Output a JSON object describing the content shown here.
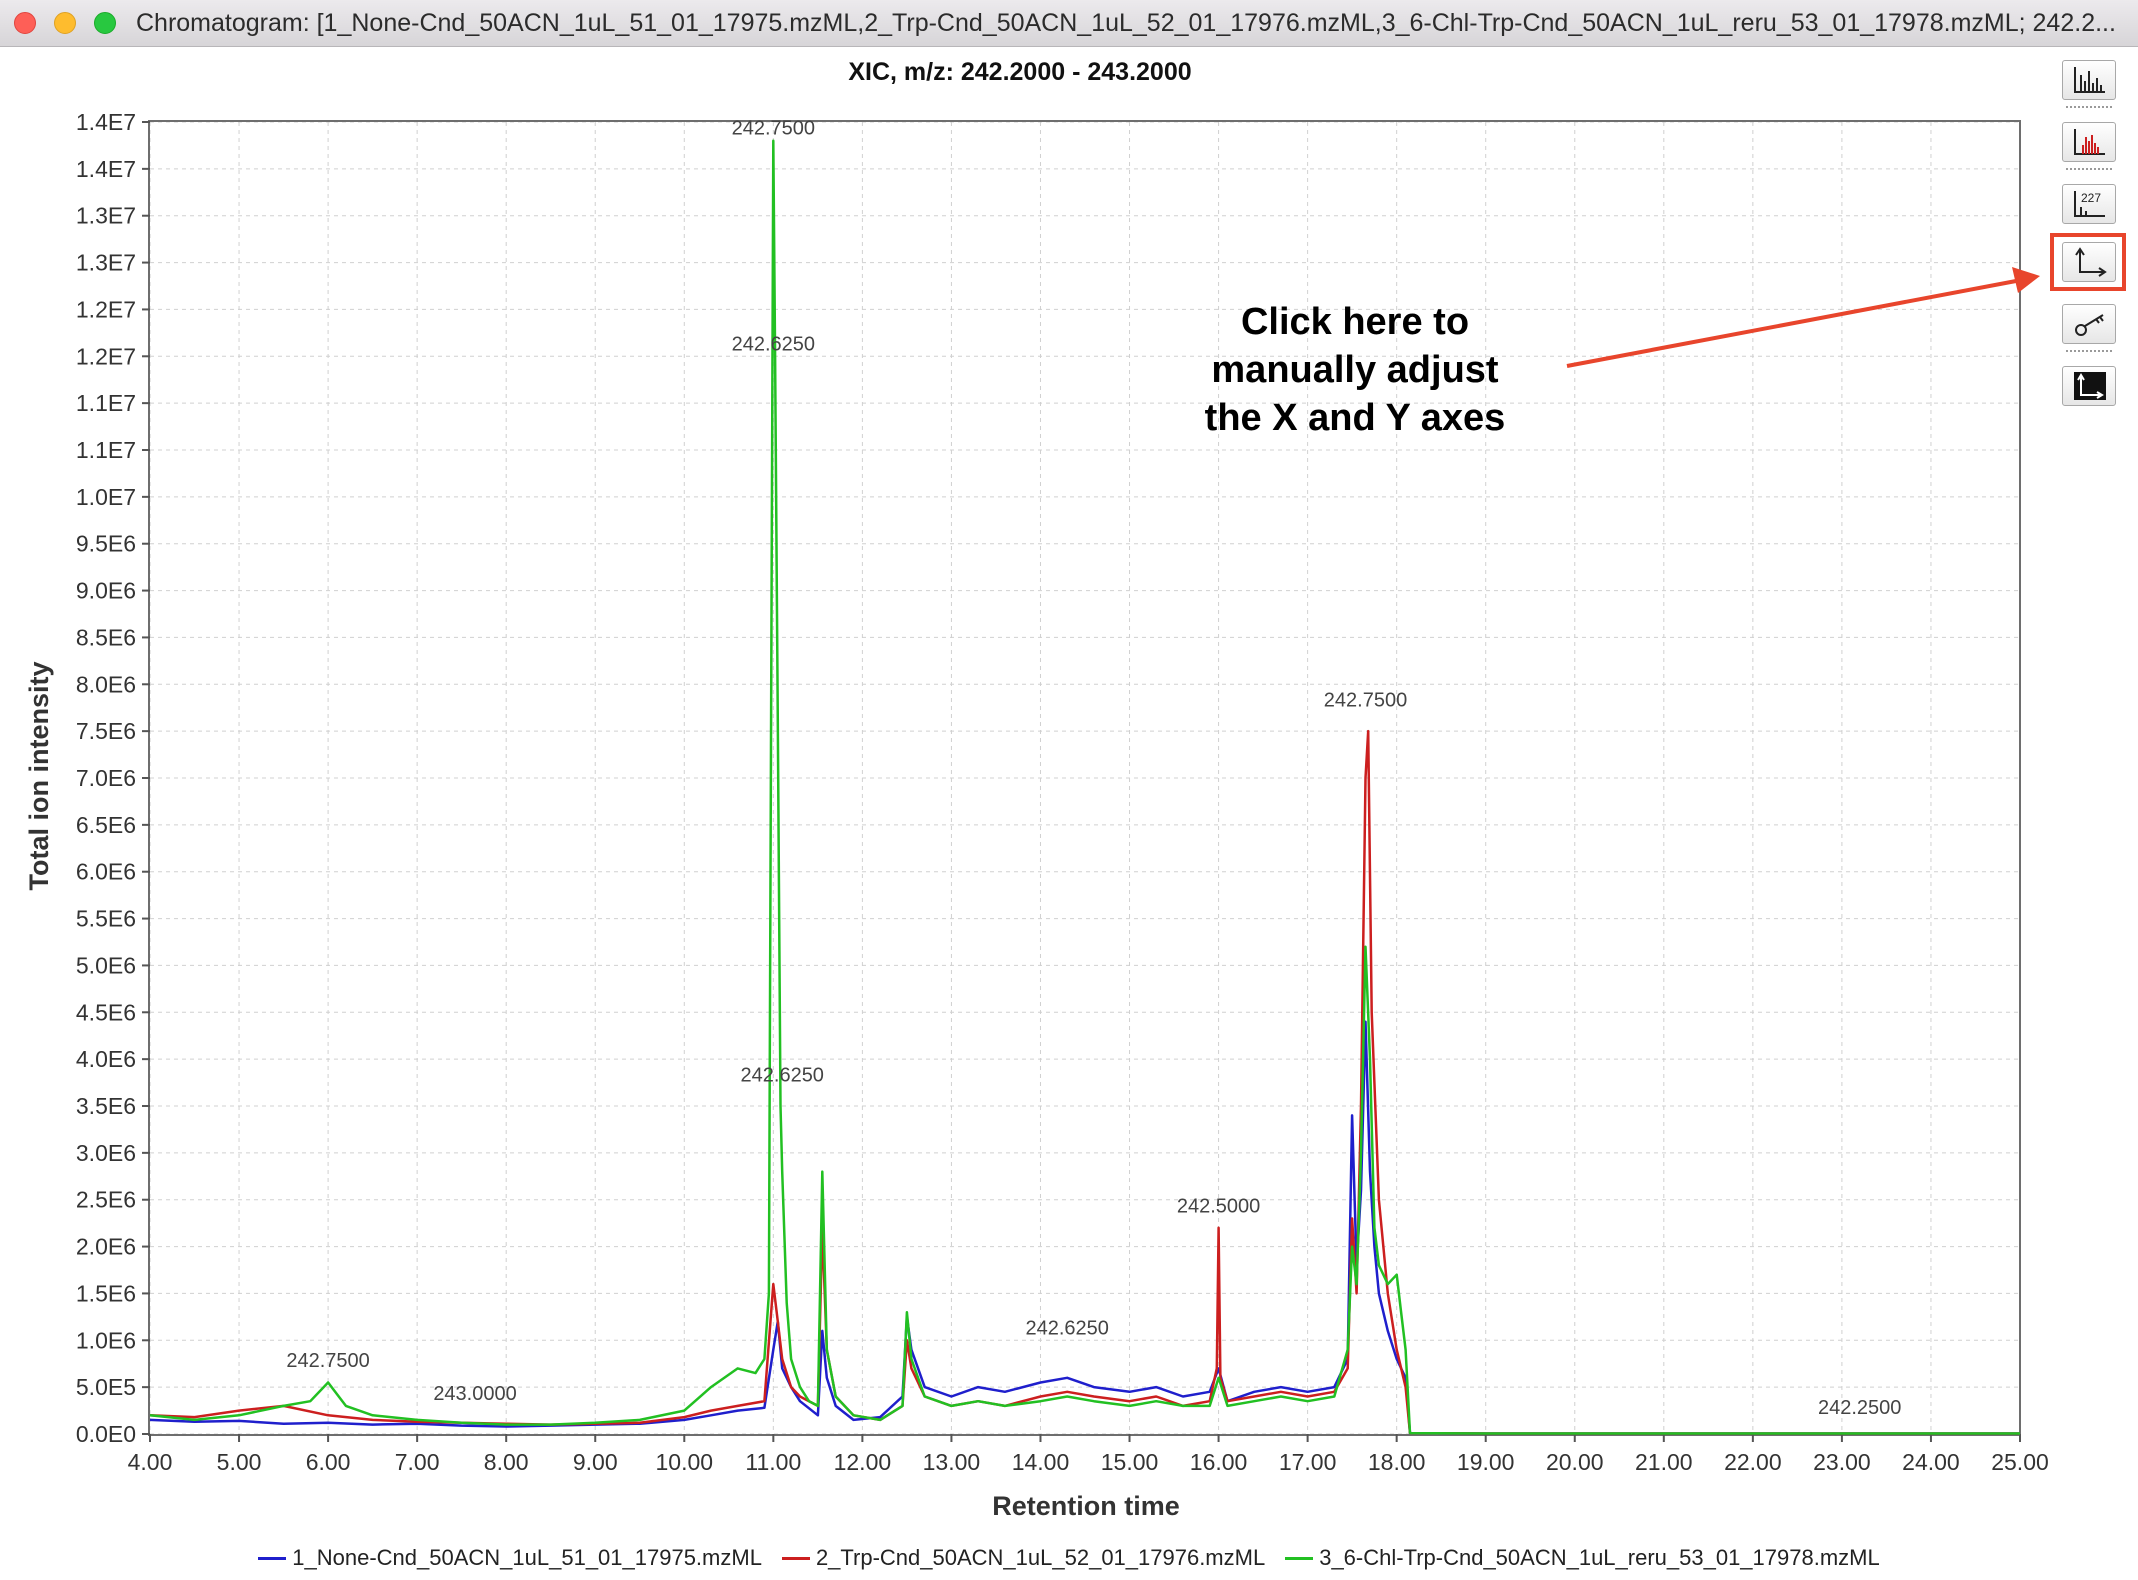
{
  "window": {
    "title": "Chromatogram: [1_None-Cnd_50ACN_1uL_51_01_17975.mzML,2_Trp-Cnd_50ACN_1uL_52_01_17976.mzML,3_6-Chl-Trp-Cnd_50ACN_1uL_reru_53_01_17978.mzML; 242.2..."
  },
  "toolbar": {
    "buttons": [
      {
        "name": "spectra-display-icon",
        "highlighted": false
      },
      {
        "name": "peak-display-icon",
        "highlighted": false
      },
      {
        "name": "annotation-toggle-icon",
        "label": "227",
        "highlighted": false
      },
      {
        "name": "axes-settings-icon",
        "highlighted": true
      },
      {
        "name": "key-icon",
        "highlighted": false
      },
      {
        "name": "axes-dark-icon",
        "highlighted": false
      }
    ]
  },
  "annotation": {
    "lines": [
      "Click here to",
      "manually adjust",
      "the X and Y axes"
    ],
    "color": "#e8452c"
  },
  "chart_data": {
    "type": "line",
    "title": "XIC, m/z: 242.2000 - 243.2000",
    "xlabel": "Retention time",
    "ylabel": "Total ion intensity",
    "xlim": [
      4.0,
      25.0
    ],
    "ylim": [
      0,
      14000000
    ],
    "x_ticks": [
      "4.00",
      "5.00",
      "6.00",
      "7.00",
      "8.00",
      "9.00",
      "10.00",
      "11.00",
      "12.00",
      "13.00",
      "14.00",
      "15.00",
      "16.00",
      "17.00",
      "18.00",
      "19.00",
      "20.00",
      "21.00",
      "22.00",
      "23.00",
      "24.00",
      "25.00"
    ],
    "y_ticks": [
      "0.0E0",
      "5.0E5",
      "1.0E6",
      "1.5E6",
      "2.0E6",
      "2.5E6",
      "3.0E6",
      "3.5E6",
      "4.0E6",
      "4.5E6",
      "5.0E6",
      "5.5E6",
      "6.0E6",
      "6.5E6",
      "7.0E6",
      "7.5E6",
      "8.0E6",
      "8.5E6",
      "9.0E6",
      "9.5E6",
      "1.0E7",
      "1.1E7",
      "1.1E7",
      "1.2E7",
      "1.2E7",
      "1.3E7",
      "1.3E7",
      "1.4E7",
      "1.4E7"
    ],
    "grid": true,
    "legend_position": "bottom",
    "series": [
      {
        "name": "1_None-Cnd_50ACN_1uL_51_01_17975.mzML",
        "color": "#1f1fcc",
        "x": [
          4.0,
          4.5,
          5.0,
          5.5,
          6.0,
          6.5,
          7.0,
          7.5,
          8.0,
          8.5,
          9.0,
          9.5,
          10.0,
          10.3,
          10.6,
          10.9,
          11.0,
          11.05,
          11.1,
          11.2,
          11.3,
          11.5,
          11.55,
          11.6,
          11.7,
          11.9,
          12.2,
          12.45,
          12.5,
          12.55,
          12.7,
          13.0,
          13.3,
          13.6,
          14.0,
          14.3,
          14.6,
          15.0,
          15.3,
          15.6,
          15.9,
          16.0,
          16.1,
          16.4,
          16.7,
          17.0,
          17.3,
          17.45,
          17.5,
          17.55,
          17.6,
          17.65,
          17.7,
          17.75,
          17.8,
          17.9,
          18.0,
          18.1,
          18.15,
          19.0,
          20.0,
          21.0,
          22.0,
          23.0,
          24.0,
          25.0
        ],
        "y": [
          150000,
          130000,
          140000,
          110000,
          120000,
          100000,
          110000,
          90000,
          80000,
          90000,
          100000,
          110000,
          150000,
          200000,
          250000,
          280000,
          900000,
          1200000,
          700000,
          500000,
          350000,
          200000,
          1100000,
          600000,
          300000,
          150000,
          180000,
          400000,
          1250000,
          900000,
          500000,
          400000,
          500000,
          450000,
          550000,
          600000,
          500000,
          450000,
          500000,
          400000,
          450000,
          700000,
          350000,
          450000,
          500000,
          450000,
          500000,
          800000,
          3400000,
          1800000,
          2600000,
          4400000,
          2800000,
          2000000,
          1500000,
          1100000,
          800000,
          600000,
          10000,
          5000,
          5000,
          5000,
          5000,
          5000,
          5000,
          5000
        ]
      },
      {
        "name": "2_Trp-Cnd_50ACN_1uL_52_01_17976.mzML",
        "color": "#cc1f1f",
        "x": [
          4.0,
          4.5,
          5.0,
          5.5,
          6.0,
          6.5,
          7.0,
          7.5,
          8.0,
          8.5,
          9.0,
          9.5,
          10.0,
          10.3,
          10.6,
          10.9,
          11.0,
          11.05,
          11.1,
          11.2,
          11.3,
          11.5,
          11.55,
          11.6,
          11.7,
          11.9,
          12.2,
          12.45,
          12.5,
          12.55,
          12.7,
          13.0,
          13.3,
          13.6,
          14.0,
          14.3,
          14.6,
          15.0,
          15.3,
          15.6,
          15.9,
          15.98,
          16.0,
          16.02,
          16.1,
          16.4,
          16.7,
          17.0,
          17.3,
          17.45,
          17.5,
          17.55,
          17.6,
          17.65,
          17.68,
          17.72,
          17.8,
          17.9,
          18.0,
          18.1,
          18.15,
          19.0,
          20.0,
          21.0,
          22.0,
          23.0,
          24.0,
          25.0
        ],
        "y": [
          200000,
          180000,
          250000,
          300000,
          200000,
          150000,
          130000,
          120000,
          110000,
          100000,
          110000,
          120000,
          180000,
          250000,
          300000,
          350000,
          1600000,
          1200000,
          800000,
          500000,
          400000,
          300000,
          2200000,
          900000,
          400000,
          200000,
          150000,
          300000,
          1000000,
          700000,
          400000,
          300000,
          350000,
          300000,
          400000,
          450000,
          400000,
          350000,
          400000,
          300000,
          350000,
          700000,
          2200000,
          600000,
          350000,
          400000,
          450000,
          400000,
          450000,
          700000,
          2300000,
          1500000,
          3500000,
          7000000,
          7500000,
          4500000,
          2500000,
          1500000,
          900000,
          500000,
          10000,
          5000,
          5000,
          5000,
          5000,
          5000,
          5000,
          5000
        ]
      },
      {
        "name": "3_6-Chl-Trp-Cnd_50ACN_1uL_reru_53_01_17978.mzML",
        "color": "#22c022",
        "x": [
          4.0,
          4.5,
          5.0,
          5.5,
          5.8,
          6.0,
          6.2,
          6.5,
          7.0,
          7.5,
          8.0,
          8.5,
          9.0,
          9.5,
          10.0,
          10.3,
          10.6,
          10.8,
          10.9,
          10.95,
          11.0,
          11.02,
          11.05,
          11.08,
          11.1,
          11.15,
          11.2,
          11.3,
          11.4,
          11.5,
          11.55,
          11.6,
          11.7,
          11.9,
          12.2,
          12.45,
          12.5,
          12.55,
          12.7,
          13.0,
          13.3,
          13.6,
          14.0,
          14.3,
          14.6,
          15.0,
          15.3,
          15.6,
          15.9,
          16.0,
          16.1,
          16.4,
          16.7,
          17.0,
          17.3,
          17.45,
          17.5,
          17.55,
          17.6,
          17.65,
          17.7,
          17.75,
          17.8,
          17.9,
          18.0,
          18.05,
          18.1,
          18.15,
          19.0,
          20.0,
          21.0,
          22.0,
          23.0,
          24.0,
          25.0
        ],
        "y": [
          200000,
          150000,
          200000,
          300000,
          350000,
          550000,
          300000,
          200000,
          150000,
          120000,
          100000,
          100000,
          120000,
          150000,
          250000,
          500000,
          700000,
          650000,
          800000,
          1500000,
          13800000,
          11500000,
          7600000,
          3500000,
          2800000,
          1400000,
          800000,
          500000,
          350000,
          300000,
          2800000,
          900000,
          400000,
          200000,
          150000,
          300000,
          1300000,
          800000,
          400000,
          300000,
          350000,
          300000,
          350000,
          400000,
          350000,
          300000,
          350000,
          300000,
          300000,
          600000,
          300000,
          350000,
          400000,
          350000,
          400000,
          900000,
          2000000,
          1600000,
          3000000,
          5200000,
          4000000,
          2200000,
          1800000,
          1600000,
          1700000,
          1300000,
          900000,
          10000,
          5000,
          5000,
          5000,
          5000,
          5000,
          5000,
          5000
        ]
      }
    ],
    "annotations": [
      {
        "x": 11.0,
        "y": 13800000,
        "text": "242.7500"
      },
      {
        "x": 11.0,
        "y": 11500000,
        "text": "242.6250"
      },
      {
        "x": 11.1,
        "y": 3700000,
        "text": "242.6250"
      },
      {
        "x": 17.65,
        "y": 7700000,
        "text": "242.7500"
      },
      {
        "x": 16.0,
        "y": 2300000,
        "text": "242.5000"
      },
      {
        "x": 14.3,
        "y": 1000000,
        "text": "242.6250"
      },
      {
        "x": 6.0,
        "y": 650000,
        "text": "242.7500"
      },
      {
        "x": 7.65,
        "y": 300000,
        "text": "243.0000"
      },
      {
        "x": 23.2,
        "y": 150000,
        "text": "242.2500"
      }
    ]
  }
}
